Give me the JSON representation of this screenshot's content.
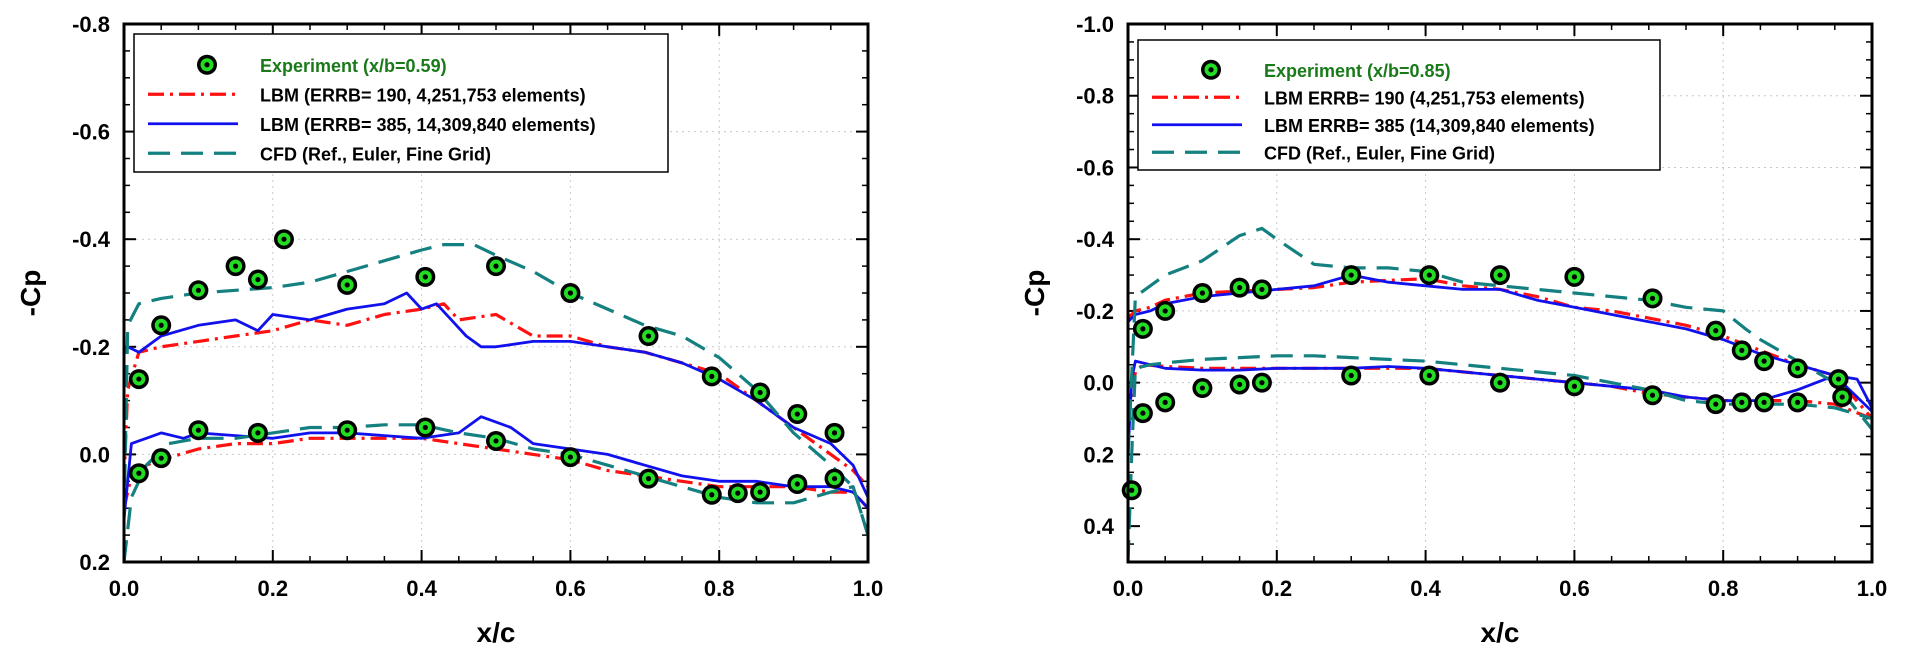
{
  "colors": {
    "experiment_ring": "#000000",
    "experiment_fill": "#22dd22",
    "lbm_190": "#ff1111",
    "lbm_385": "#1111ee",
    "cfd": "#148080",
    "legend_experiment_text": "#1a7a1a"
  },
  "chart_data": [
    {
      "type": "line",
      "xlabel": "x/c",
      "ylabel": "-Cp",
      "xlim": [
        0.0,
        1.0
      ],
      "ylim": [
        0.2,
        -0.8
      ],
      "y_inverted": true,
      "x_ticks": [
        "0.0",
        "0.2",
        "0.4",
        "0.6",
        "0.8",
        "1.0"
      ],
      "y_ticks": [
        "-0.8",
        "-0.6",
        "-0.4",
        "-0.2",
        "0.0",
        "0.2"
      ],
      "grid": true,
      "legend_position": "top-left",
      "legend": [
        "Experiment (x/b=0.59)",
        "LBM (ERRB= 190, 4,251,753 elements)",
        "LBM (ERRB= 385, 14,309,840 elements)",
        "CFD (Ref., Euler, Fine Grid)"
      ],
      "series": [
        {
          "name": "Experiment (x/b=0.59)",
          "style": "markers",
          "x": [
            0.02,
            0.05,
            0.1,
            0.15,
            0.18,
            0.215,
            0.3,
            0.405,
            0.5,
            0.6,
            0.705,
            0.79,
            0.855,
            0.905,
            0.955,
            0.02,
            0.05,
            0.1,
            0.18,
            0.3,
            0.405,
            0.5,
            0.6,
            0.705,
            0.79,
            0.825,
            0.855,
            0.905,
            0.955
          ],
          "y": [
            -0.14,
            -0.24,
            -0.305,
            -0.35,
            -0.325,
            -0.4,
            -0.315,
            -0.33,
            -0.35,
            -0.3,
            -0.22,
            -0.145,
            -0.115,
            -0.075,
            -0.04,
            0.035,
            0.007,
            -0.045,
            -0.04,
            -0.045,
            -0.05,
            -0.025,
            0.005,
            0.045,
            0.075,
            0.072,
            0.07,
            0.055,
            0.045
          ]
        },
        {
          "name": "LBM (ERRB= 190, 4,251,753 elements)",
          "style": "dashdot",
          "segments": [
            {
              "x": [
                0.0,
                0.005,
                0.02,
                0.05,
                0.1,
                0.15,
                0.2,
                0.25,
                0.3,
                0.35,
                0.4,
                0.43,
                0.45,
                0.5,
                0.55,
                0.6,
                0.65,
                0.7,
                0.75,
                0.8,
                0.85,
                0.9,
                0.95,
                0.98,
                1.0
              ],
              "y": [
                0.05,
                -0.12,
                -0.19,
                -0.2,
                -0.21,
                -0.22,
                -0.23,
                -0.25,
                -0.24,
                -0.26,
                -0.27,
                -0.28,
                -0.25,
                -0.26,
                -0.22,
                -0.22,
                -0.2,
                -0.19,
                -0.17,
                -0.15,
                -0.1,
                -0.05,
                0.0,
                0.03,
                0.06
              ]
            },
            {
              "x": [
                0.0,
                0.01,
                0.03,
                0.05,
                0.1,
                0.15,
                0.2,
                0.25,
                0.3,
                0.35,
                0.4,
                0.45,
                0.5,
                0.55,
                0.6,
                0.65,
                0.7,
                0.75,
                0.8,
                0.85,
                0.9,
                0.95,
                0.98,
                1.0
              ],
              "y": [
                0.1,
                0.04,
                0.02,
                0.01,
                -0.01,
                -0.02,
                -0.02,
                -0.03,
                -0.03,
                -0.03,
                -0.03,
                -0.02,
                -0.01,
                0.0,
                0.01,
                0.03,
                0.04,
                0.05,
                0.06,
                0.06,
                0.06,
                0.07,
                0.07,
                0.1
              ]
            }
          ]
        },
        {
          "name": "LBM (ERRB= 385, 14,309,840 elements)",
          "style": "solid",
          "segments": [
            {
              "x": [
                0.0,
                0.005,
                0.02,
                0.05,
                0.1,
                0.15,
                0.18,
                0.2,
                0.25,
                0.3,
                0.35,
                0.38,
                0.4,
                0.42,
                0.44,
                0.46,
                0.48,
                0.5,
                0.55,
                0.6,
                0.65,
                0.7,
                0.75,
                0.8,
                0.85,
                0.9,
                0.95,
                0.98,
                1.0
              ],
              "y": [
                -0.19,
                -0.2,
                -0.19,
                -0.22,
                -0.24,
                -0.25,
                -0.23,
                -0.26,
                -0.25,
                -0.27,
                -0.28,
                -0.3,
                -0.27,
                -0.28,
                -0.25,
                -0.22,
                -0.2,
                -0.2,
                -0.21,
                -0.21,
                -0.2,
                -0.19,
                -0.17,
                -0.14,
                -0.1,
                -0.05,
                -0.02,
                0.02,
                0.08
              ]
            },
            {
              "x": [
                0.0,
                0.01,
                0.03,
                0.05,
                0.08,
                0.1,
                0.15,
                0.2,
                0.25,
                0.3,
                0.35,
                0.4,
                0.45,
                0.48,
                0.5,
                0.52,
                0.55,
                0.6,
                0.65,
                0.7,
                0.75,
                0.8,
                0.85,
                0.9,
                0.95,
                0.98,
                1.0
              ],
              "y": [
                0.12,
                -0.02,
                -0.03,
                -0.04,
                -0.03,
                -0.04,
                -0.035,
                -0.03,
                -0.04,
                -0.04,
                -0.035,
                -0.03,
                -0.04,
                -0.07,
                -0.06,
                -0.05,
                -0.02,
                -0.01,
                0.0,
                0.02,
                0.04,
                0.05,
                0.05,
                0.06,
                0.06,
                0.07,
                0.1
              ]
            }
          ]
        },
        {
          "name": "CFD (Ref., Euler, Fine Grid)",
          "style": "dashed",
          "segments": [
            {
              "x": [
                0.0,
                0.005,
                0.02,
                0.05,
                0.1,
                0.15,
                0.2,
                0.25,
                0.3,
                0.35,
                0.4,
                0.43,
                0.47,
                0.5,
                0.55,
                0.6,
                0.65,
                0.7,
                0.75,
                0.8,
                0.85,
                0.9,
                0.95,
                0.98,
                1.0
              ],
              "y": [
                0.12,
                -0.24,
                -0.28,
                -0.29,
                -0.3,
                -0.305,
                -0.31,
                -0.32,
                -0.34,
                -0.36,
                -0.38,
                -0.39,
                -0.39,
                -0.37,
                -0.34,
                -0.3,
                -0.27,
                -0.24,
                -0.22,
                -0.18,
                -0.12,
                -0.04,
                0.02,
                0.06,
                0.15
              ]
            },
            {
              "x": [
                0.0,
                0.01,
                0.03,
                0.06,
                0.1,
                0.15,
                0.2,
                0.25,
                0.3,
                0.35,
                0.4,
                0.45,
                0.5,
                0.55,
                0.6,
                0.65,
                0.7,
                0.75,
                0.8,
                0.85,
                0.9,
                0.95,
                0.98,
                1.0
              ],
              "y": [
                0.2,
                0.08,
                0.02,
                -0.02,
                -0.03,
                -0.03,
                -0.04,
                -0.05,
                -0.05,
                -0.055,
                -0.055,
                -0.04,
                -0.03,
                -0.01,
                0.0,
                0.02,
                0.04,
                0.06,
                0.08,
                0.09,
                0.09,
                0.07,
                0.06,
                0.15
              ]
            }
          ]
        }
      ]
    },
    {
      "type": "line",
      "xlabel": "x/c",
      "ylabel": "-Cp",
      "xlim": [
        0.0,
        1.0
      ],
      "ylim": [
        0.5,
        -1.0
      ],
      "y_inverted": true,
      "x_ticks": [
        "0.0",
        "0.2",
        "0.4",
        "0.6",
        "0.8",
        "1.0"
      ],
      "y_ticks": [
        "-1.0",
        "-0.8",
        "-0.6",
        "-0.4",
        "-0.2",
        "0.0",
        "0.2",
        "0.4"
      ],
      "grid": true,
      "legend_position": "top-left",
      "legend": [
        "Experiment (x/b=0.85)",
        "LBM ERRB= 190 (4,251,753 elements)",
        "LBM ERRB= 385 (14,309,840 elements)",
        "CFD (Ref., Euler, Fine Grid)"
      ],
      "series": [
        {
          "name": "Experiment (x/b=0.85)",
          "style": "markers",
          "x": [
            0.02,
            0.05,
            0.1,
            0.15,
            0.18,
            0.3,
            0.405,
            0.5,
            0.6,
            0.705,
            0.79,
            0.825,
            0.855,
            0.9,
            0.955,
            0.005,
            0.02,
            0.05,
            0.1,
            0.15,
            0.18,
            0.3,
            0.405,
            0.5,
            0.6,
            0.705,
            0.79,
            0.825,
            0.855,
            0.9,
            0.96
          ],
          "y": [
            -0.15,
            -0.2,
            -0.25,
            -0.265,
            -0.26,
            -0.3,
            -0.3,
            -0.3,
            -0.295,
            -0.235,
            -0.145,
            -0.09,
            -0.06,
            -0.04,
            -0.01,
            0.3,
            0.085,
            0.055,
            0.015,
            0.005,
            0.0,
            -0.02,
            -0.02,
            0.0,
            0.01,
            0.035,
            0.06,
            0.055,
            0.055,
            0.055,
            0.04
          ]
        },
        {
          "name": "LBM ERRB= 190 (4,251,753 elements)",
          "style": "dashdot",
          "segments": [
            {
              "x": [
                0.0,
                0.01,
                0.03,
                0.05,
                0.1,
                0.15,
                0.2,
                0.25,
                0.3,
                0.35,
                0.4,
                0.45,
                0.5,
                0.55,
                0.6,
                0.65,
                0.7,
                0.75,
                0.8,
                0.85,
                0.9,
                0.95,
                1.0
              ],
              "y": [
                -0.18,
                -0.2,
                -0.21,
                -0.23,
                -0.25,
                -0.255,
                -0.26,
                -0.265,
                -0.28,
                -0.285,
                -0.29,
                -0.27,
                -0.26,
                -0.24,
                -0.21,
                -0.2,
                -0.18,
                -0.16,
                -0.13,
                -0.09,
                -0.05,
                -0.02,
                0.1
              ]
            },
            {
              "x": [
                0.0,
                0.01,
                0.02,
                0.05,
                0.1,
                0.15,
                0.2,
                0.25,
                0.3,
                0.35,
                0.4,
                0.45,
                0.5,
                0.55,
                0.6,
                0.65,
                0.7,
                0.75,
                0.8,
                0.85,
                0.9,
                0.95,
                1.0
              ],
              "y": [
                0.1,
                -0.03,
                -0.05,
                -0.045,
                -0.04,
                -0.04,
                -0.04,
                -0.04,
                -0.04,
                -0.04,
                -0.04,
                -0.03,
                -0.02,
                -0.01,
                0.0,
                0.01,
                0.03,
                0.04,
                0.05,
                0.05,
                0.05,
                0.06,
                0.1
              ]
            }
          ]
        },
        {
          "name": "LBM ERRB= 385 (14,309,840 elements)",
          "style": "solid",
          "segments": [
            {
              "x": [
                0.0,
                0.01,
                0.03,
                0.05,
                0.1,
                0.15,
                0.2,
                0.25,
                0.3,
                0.35,
                0.4,
                0.45,
                0.5,
                0.55,
                0.6,
                0.65,
                0.7,
                0.75,
                0.8,
                0.85,
                0.9,
                0.95,
                1.0
              ],
              "y": [
                -0.17,
                -0.19,
                -0.2,
                -0.22,
                -0.24,
                -0.25,
                -0.26,
                -0.27,
                -0.3,
                -0.28,
                -0.27,
                -0.26,
                -0.26,
                -0.23,
                -0.21,
                -0.19,
                -0.17,
                -0.15,
                -0.12,
                -0.08,
                -0.05,
                -0.02,
                0.08
              ]
            },
            {
              "x": [
                0.0,
                0.005,
                0.01,
                0.03,
                0.05,
                0.1,
                0.15,
                0.2,
                0.25,
                0.3,
                0.35,
                0.4,
                0.45,
                0.5,
                0.55,
                0.6,
                0.65,
                0.7,
                0.75,
                0.8,
                0.85,
                0.9,
                0.95,
                0.98,
                1.0
              ],
              "y": [
                0.2,
                -0.01,
                -0.06,
                -0.05,
                -0.04,
                -0.035,
                -0.035,
                -0.04,
                -0.04,
                -0.04,
                -0.045,
                -0.04,
                -0.03,
                -0.02,
                -0.01,
                0.0,
                0.01,
                0.02,
                0.04,
                0.05,
                0.05,
                0.02,
                -0.02,
                -0.01,
                0.07
              ]
            }
          ]
        },
        {
          "name": "CFD (Ref., Euler, Fine Grid)",
          "style": "dashed",
          "segments": [
            {
              "x": [
                0.0,
                0.01,
                0.03,
                0.05,
                0.1,
                0.15,
                0.18,
                0.2,
                0.25,
                0.3,
                0.35,
                0.4,
                0.45,
                0.5,
                0.55,
                0.6,
                0.65,
                0.7,
                0.75,
                0.8,
                0.83,
                0.85,
                0.9,
                0.95,
                1.0
              ],
              "y": [
                0.2,
                -0.24,
                -0.27,
                -0.3,
                -0.34,
                -0.41,
                -0.43,
                -0.4,
                -0.33,
                -0.32,
                -0.32,
                -0.31,
                -0.28,
                -0.27,
                -0.26,
                -0.25,
                -0.24,
                -0.23,
                -0.21,
                -0.2,
                -0.15,
                -0.12,
                -0.06,
                0.0,
                0.13
              ]
            },
            {
              "x": [
                0.0,
                0.005,
                0.01,
                0.03,
                0.05,
                0.1,
                0.15,
                0.2,
                0.25,
                0.3,
                0.35,
                0.4,
                0.45,
                0.5,
                0.55,
                0.6,
                0.65,
                0.7,
                0.75,
                0.8,
                0.85,
                0.9,
                0.95,
                1.0
              ],
              "y": [
                0.5,
                0.2,
                -0.04,
                -0.05,
                -0.055,
                -0.065,
                -0.07,
                -0.075,
                -0.075,
                -0.07,
                -0.065,
                -0.06,
                -0.05,
                -0.04,
                -0.03,
                -0.02,
                0.0,
                0.02,
                0.05,
                0.06,
                0.06,
                0.06,
                0.07,
                0.1
              ]
            }
          ]
        }
      ]
    }
  ]
}
